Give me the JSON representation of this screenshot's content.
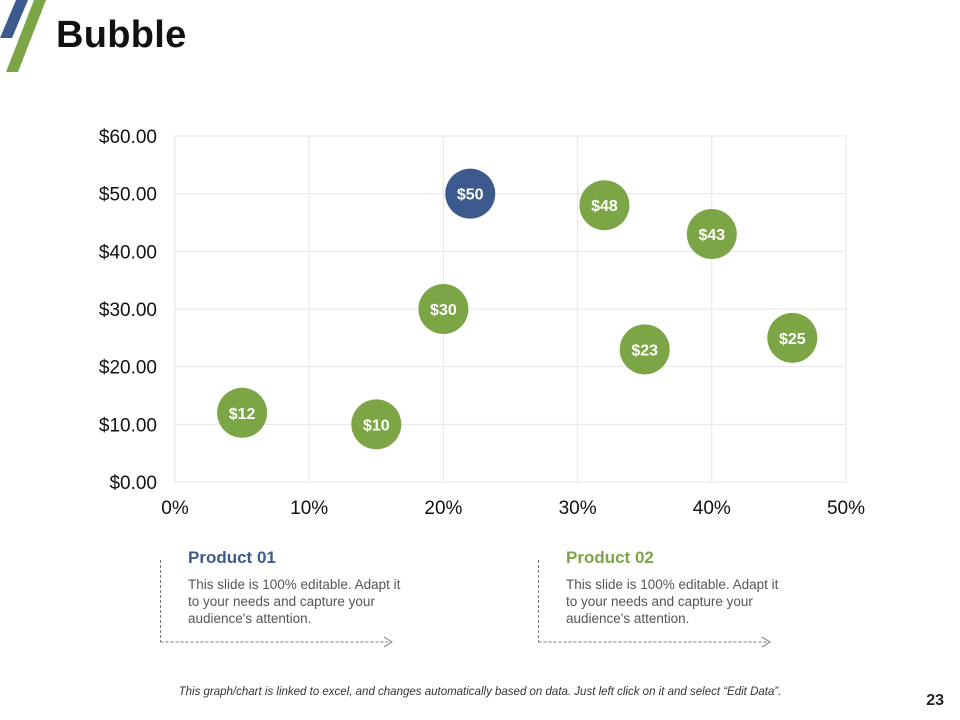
{
  "slide": {
    "title": "Bubble",
    "footer_note": "This graph/chart is linked to excel, and changes automatically  based on data.  Just left click on it and select “Edit Data”.",
    "page_number": "23"
  },
  "colors": {
    "product_01": "#3D5A8F",
    "product_02": "#7CA646",
    "grid": "#e6e6e6",
    "stripe_blue": "#3D5A8F",
    "stripe_green": "#7CA646"
  },
  "chart_data": {
    "type": "scatter",
    "title": "",
    "xlabel": "",
    "ylabel": "",
    "xlim": [
      0,
      0.5
    ],
    "ylim": [
      0,
      60
    ],
    "x_ticks": [
      {
        "value": 0,
        "label": "0%"
      },
      {
        "value": 0.1,
        "label": "10%"
      },
      {
        "value": 0.2,
        "label": "20%"
      },
      {
        "value": 0.3,
        "label": "30%"
      },
      {
        "value": 0.4,
        "label": "40%"
      },
      {
        "value": 0.5,
        "label": "50%"
      }
    ],
    "y_ticks": [
      {
        "value": 0,
        "label": "$0.00"
      },
      {
        "value": 10,
        "label": "$10.00"
      },
      {
        "value": 20,
        "label": "$20.00"
      },
      {
        "value": 30,
        "label": "$30.00"
      },
      {
        "value": 40,
        "label": "$40.00"
      },
      {
        "value": 50,
        "label": "$50.00"
      },
      {
        "value": 60,
        "label": "$60.00"
      }
    ],
    "grid": true,
    "series": [
      {
        "name": "Product 01",
        "color": "#3D5A8F",
        "points": [
          {
            "x": 0.22,
            "y": 50,
            "label": "$50"
          }
        ]
      },
      {
        "name": "Product 02",
        "color": "#7CA646",
        "points": [
          {
            "x": 0.05,
            "y": 12,
            "label": "$12"
          },
          {
            "x": 0.15,
            "y": 10,
            "label": "$10"
          },
          {
            "x": 0.2,
            "y": 30,
            "label": "$30"
          },
          {
            "x": 0.32,
            "y": 48,
            "label": "$48"
          },
          {
            "x": 0.35,
            "y": 23,
            "label": "$23"
          },
          {
            "x": 0.4,
            "y": 43,
            "label": "$43"
          },
          {
            "x": 0.46,
            "y": 25,
            "label": "$25"
          }
        ]
      }
    ]
  },
  "legend": [
    {
      "title": "Product 01",
      "description": "This slide is 100% editable. Adapt it to your needs and capture your audience's attention."
    },
    {
      "title": "Product 02",
      "description": "This slide is 100% editable. Adapt it to your needs and capture your audience's attention."
    }
  ]
}
